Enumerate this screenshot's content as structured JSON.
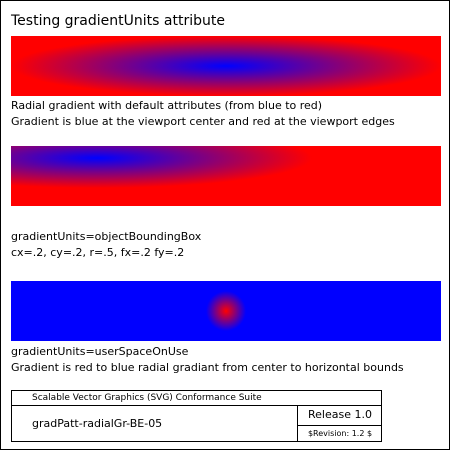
{
  "title": "Testing gradientUnits attribute",
  "tests": [
    {
      "lines": [
        "Radial gradient with default attributes (from blue to red)",
        "Gradient is blue at the viewport center and red at the viewport edges"
      ],
      "gradient": {
        "inner_color": "#0000ff",
        "outer_color": "#ff0000"
      }
    },
    {
      "lines": [
        "gradientUnits=objectBoundingBox",
        "cx=.2, cy=.2, r=.5, fx=.2 fy=.2"
      ],
      "gradient": {
        "inner_color": "#0000ff",
        "outer_color": "#ff0000"
      }
    },
    {
      "lines": [
        "gradientUnits=userSpaceOnUse",
        "Gradient is red to blue radial gradiant from center to horizontal bounds"
      ],
      "gradient": {
        "inner_color": "#ff0000",
        "outer_color": "#0000ff"
      }
    }
  ],
  "legend": {
    "suite": "Scalable Vector Graphics (SVG) Conformance Suite",
    "test_name": "gradPatt-radialGr-BE-05",
    "release": "Release 1.0",
    "revision": "$Revision: 1.2 $"
  }
}
